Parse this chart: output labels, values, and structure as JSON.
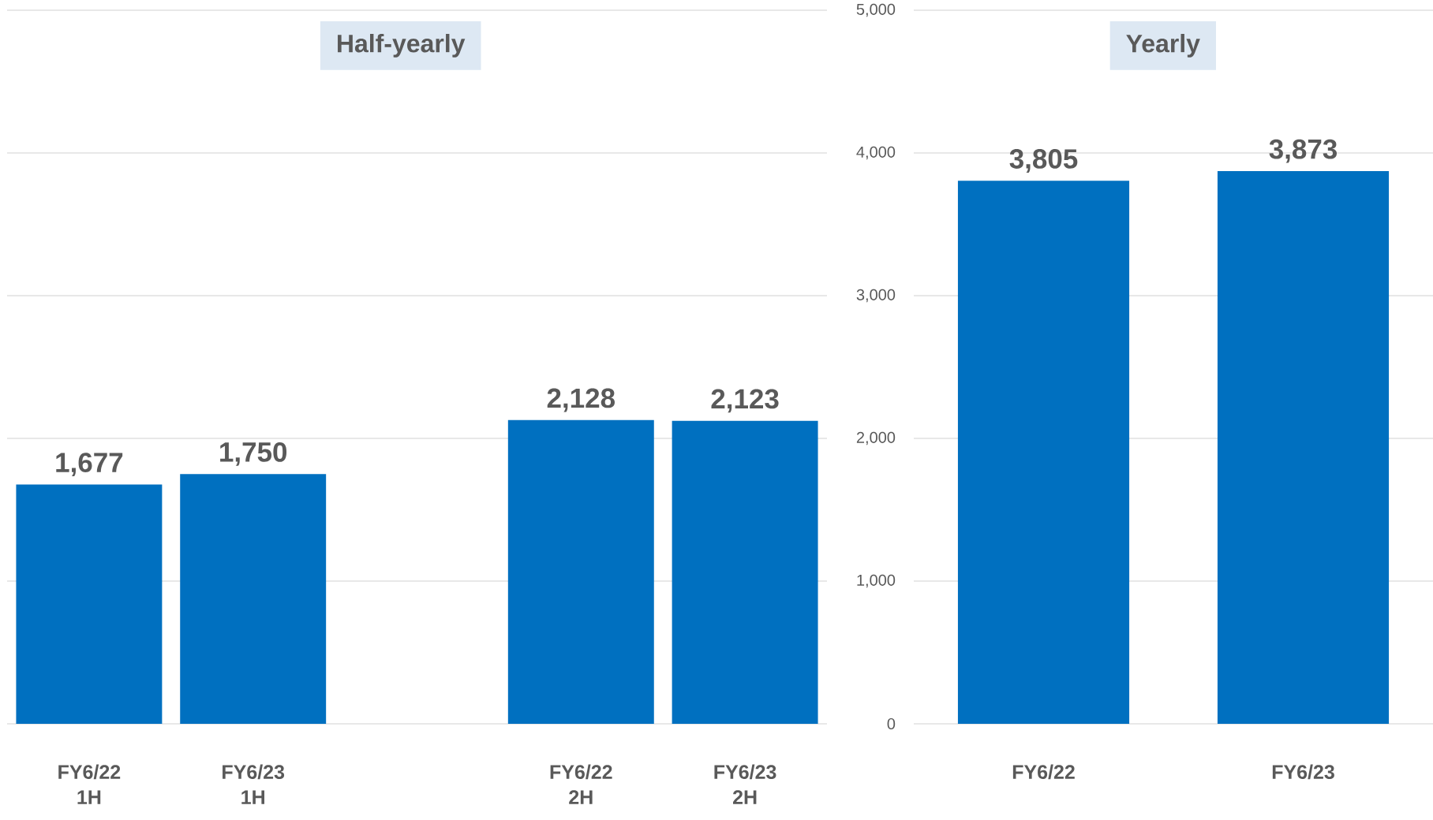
{
  "chart_data": [
    {
      "type": "bar",
      "title": "Half-yearly",
      "categories": [
        "FY6/22 1H",
        "FY6/23 1H",
        null,
        "FY6/22 2H",
        "FY6/23 2H"
      ],
      "values": [
        1677,
        1750,
        null,
        2128,
        2123
      ],
      "value_labels": [
        "1,677",
        "1,750",
        null,
        "2,128",
        "2,123"
      ],
      "color": "#0070c0",
      "ylim": [
        0,
        5000
      ],
      "yticks": [
        0,
        1000,
        2000,
        3000,
        4000,
        5000
      ],
      "tick_labels": "x",
      "grid": "y"
    },
    {
      "type": "bar",
      "title": "Yearly",
      "categories": [
        "FY6/22",
        "FY6/23"
      ],
      "values": [
        3805,
        3873
      ],
      "value_labels": [
        "3,805",
        "3,873"
      ],
      "color": "#0070c0",
      "ylim": [
        0,
        5000
      ],
      "yticks": [
        {
          "value": 0,
          "label": "0"
        },
        {
          "value": 1000,
          "label": "1,000"
        },
        {
          "value": 2000,
          "label": "2,000"
        },
        {
          "value": 3000,
          "label": "3,000"
        },
        {
          "value": 4000,
          "label": "4,000"
        },
        {
          "value": 5000,
          "label": "5,000"
        }
      ],
      "grid": "y"
    }
  ]
}
